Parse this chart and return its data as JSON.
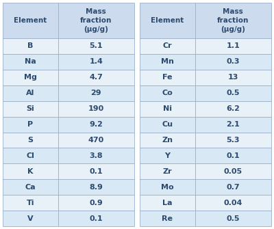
{
  "left_headers": [
    "Element",
    "Mass\nfraction\n(μg/g)"
  ],
  "right_headers": [
    "Element",
    "Mass\nfraction\n(μg/g)"
  ],
  "left_data": [
    [
      "B",
      "5.1"
    ],
    [
      "Na",
      "1.4"
    ],
    [
      "Mg",
      "4.7"
    ],
    [
      "Al",
      "29"
    ],
    [
      "Si",
      "190"
    ],
    [
      "P",
      "9.2"
    ],
    [
      "S",
      "470"
    ],
    [
      "Cl",
      "3.8"
    ],
    [
      "K",
      "0.1"
    ],
    [
      "Ca",
      "8.9"
    ],
    [
      "Ti",
      "0.9"
    ],
    [
      "V",
      "0.1"
    ]
  ],
  "right_data": [
    [
      "Cr",
      "1.1"
    ],
    [
      "Mn",
      "0.3"
    ],
    [
      "Fe",
      "13"
    ],
    [
      "Co",
      "0.5"
    ],
    [
      "Ni",
      "6.2"
    ],
    [
      "Cu",
      "2.1"
    ],
    [
      "Zn",
      "5.3"
    ],
    [
      "Y",
      "0.1"
    ],
    [
      "Zr",
      "0.05"
    ],
    [
      "Mo",
      "0.7"
    ],
    [
      "La",
      "0.04"
    ],
    [
      "Re",
      "0.5"
    ]
  ],
  "header_bg": "#ccdcee",
  "row_bg_light": "#e8f0f8",
  "row_bg_mid": "#d8e8f5",
  "text_color": "#2c4a6e",
  "border_color": "#9ab0c8",
  "header_fontsize": 7.5,
  "data_fontsize": 8.0,
  "fig_width": 4.0,
  "fig_height": 3.35,
  "dpi": 100
}
